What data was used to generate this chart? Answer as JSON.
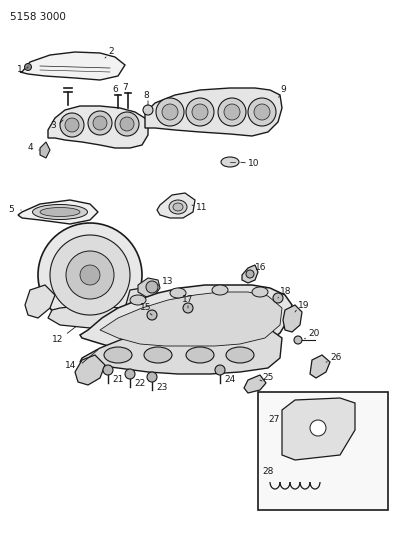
{
  "title": "5158 3000",
  "bg_color": "#ffffff",
  "line_color": "#1a1a1a",
  "fig_width": 4.08,
  "fig_height": 5.33,
  "dpi": 100
}
